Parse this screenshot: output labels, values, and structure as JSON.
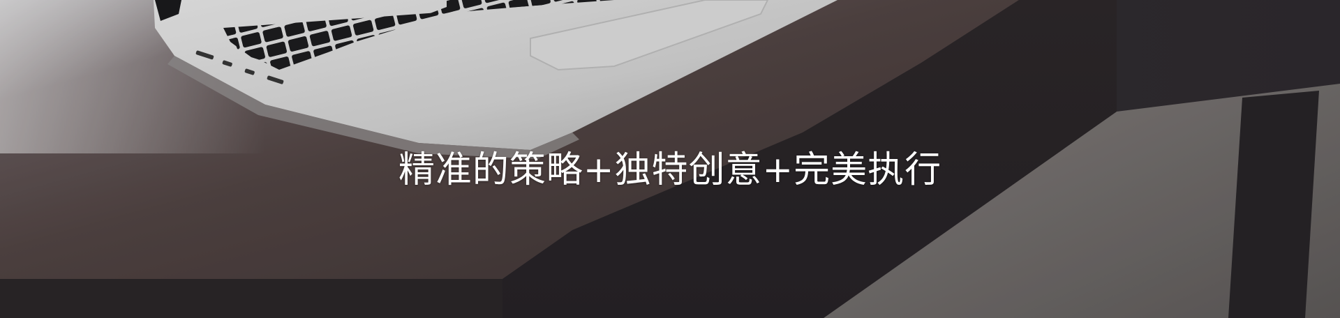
{
  "banner": {
    "headline": "精准的策略+独特创意+完美执行",
    "image": "laptop-on-desk-photo"
  },
  "colors": {
    "desk": "#4a3f3e",
    "floor": "#6f6a68",
    "shadow": "#2f2b2e",
    "laptop_body": "#e4e4e4",
    "keyboard": "#2a2a2c",
    "text": "#ffffff"
  }
}
